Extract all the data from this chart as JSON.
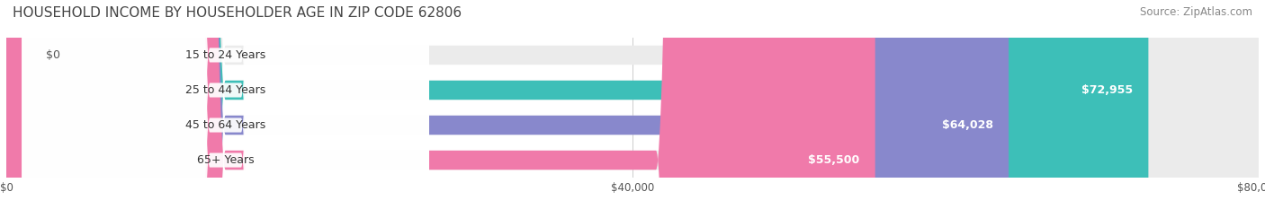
{
  "title": "HOUSEHOLD INCOME BY HOUSEHOLDER AGE IN ZIP CODE 62806",
  "source": "Source: ZipAtlas.com",
  "categories": [
    "15 to 24 Years",
    "25 to 44 Years",
    "45 to 64 Years",
    "65+ Years"
  ],
  "values": [
    0,
    72955,
    64028,
    55500
  ],
  "labels": [
    "$0",
    "$72,955",
    "$64,028",
    "$55,500"
  ],
  "bar_colors": [
    "#c9a8d4",
    "#3dbfb8",
    "#8888cc",
    "#f07aaa"
  ],
  "bg_track_color": "#f0f0f0",
  "xlim": [
    0,
    80000
  ],
  "xticks": [
    0,
    40000,
    80000
  ],
  "xticklabels": [
    "$0",
    "$40,000",
    "$80,000"
  ],
  "label_fontsize": 9,
  "title_fontsize": 11,
  "source_fontsize": 8.5,
  "bar_height": 0.55,
  "background_color": "#ffffff"
}
